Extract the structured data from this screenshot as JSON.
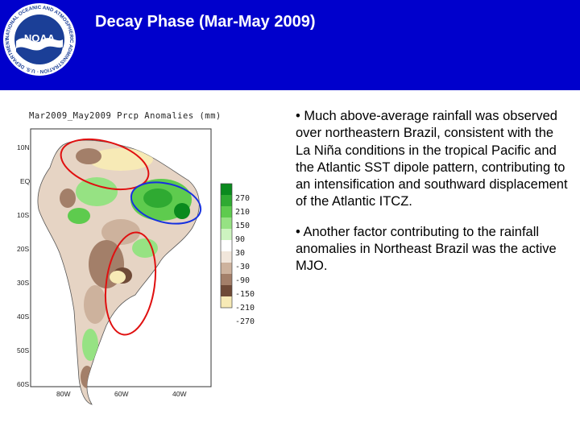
{
  "header": {
    "title": "Decay Phase (Mar-May 2009)",
    "logo_text": "NOAA",
    "logo_ring_text": "NATIONAL OCEANIC AND ATMOSPHERIC ADMINISTRATION · U.S. DEPARTMENT OF COMMERCE",
    "background_color": "#0000cc"
  },
  "map": {
    "title": "Mar2009_May2009 Prcp Anomalies (mm)",
    "lat_labels": [
      "10N",
      "EQ",
      "10S",
      "20S",
      "30S",
      "40S",
      "50S",
      "60S"
    ],
    "lon_labels": [
      "80W",
      "60W",
      "40W"
    ],
    "legend": {
      "labels": [
        "270",
        "210",
        "150",
        "90",
        "30",
        "-30",
        "-90",
        "-150",
        "-210",
        "-270"
      ],
      "colors": [
        "#0a8a1e",
        "#2faa32",
        "#5ecb4e",
        "#96e283",
        "#cdf3c0",
        "#f1e6db",
        "#cdb29d",
        "#a37f69",
        "#6f4a37",
        "#f7eab6"
      ]
    },
    "ellipses": [
      {
        "region": "northern South America",
        "color": "red"
      },
      {
        "region": "northeastern Brazil",
        "color": "blue"
      },
      {
        "region": "southern South America",
        "color": "red"
      }
    ]
  },
  "bullets": [
    "• Much above-average rainfall was observed over northeastern Brazil, consistent with the La Niña conditions in the tropical Pacific and the Atlantic SST dipole pattern, contributing to an intensification and southward displacement of the Atlantic ITCZ.",
    "• Another factor contributing to the rainfall anomalies in Northeast Brazil was the active MJO."
  ]
}
